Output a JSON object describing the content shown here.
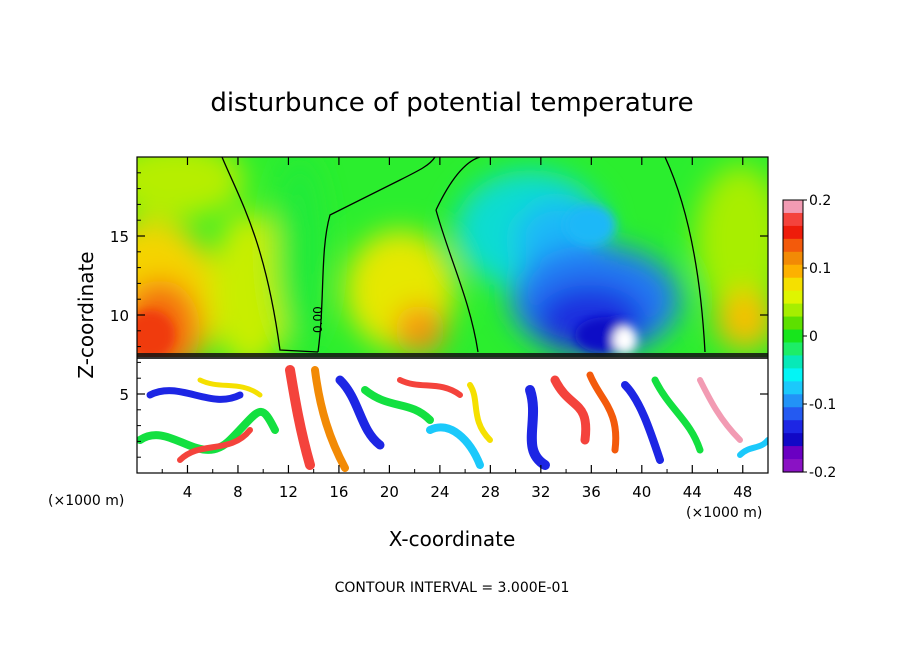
{
  "chart_data": {
    "type": "heatmap",
    "title": "disturbunce of potential temperature",
    "xlabel": "X-coordinate",
    "ylabel": "Z-coordinate",
    "x_unit_left": "(×1000 m)",
    "x_unit_right": "(×1000 m)",
    "xlim": [
      0,
      50
    ],
    "ylim": [
      0,
      20
    ],
    "x_ticks": [
      4,
      8,
      12,
      16,
      20,
      24,
      28,
      32,
      36,
      40,
      44,
      48
    ],
    "y_ticks": [
      5,
      10,
      15
    ],
    "footer": "CONTOUR INTERVAL = 3.000E-01",
    "contour_label": "0.00",
    "colorbar": {
      "min": -0.2,
      "max": 0.2,
      "tick_values": [
        0.2,
        0.1,
        0,
        -0.1,
        -0.2
      ],
      "tick_labels": [
        "0.2",
        "0.1",
        "0",
        "-0.1",
        "-0.2"
      ],
      "colors": [
        "#f29bb3",
        "#f4433c",
        "#ee1c0a",
        "#f35a0b",
        "#f28a05",
        "#fdb100",
        "#f5e000",
        "#dff500",
        "#a6ee00",
        "#5de000",
        "#17e51c",
        "#1ded67",
        "#07e9b8",
        "#03f5f5",
        "#1bc9fb",
        "#2293f7",
        "#245af1",
        "#1d26e4",
        "#1108c6",
        "#6a00c2",
        "#8a12c4"
      ]
    }
  }
}
